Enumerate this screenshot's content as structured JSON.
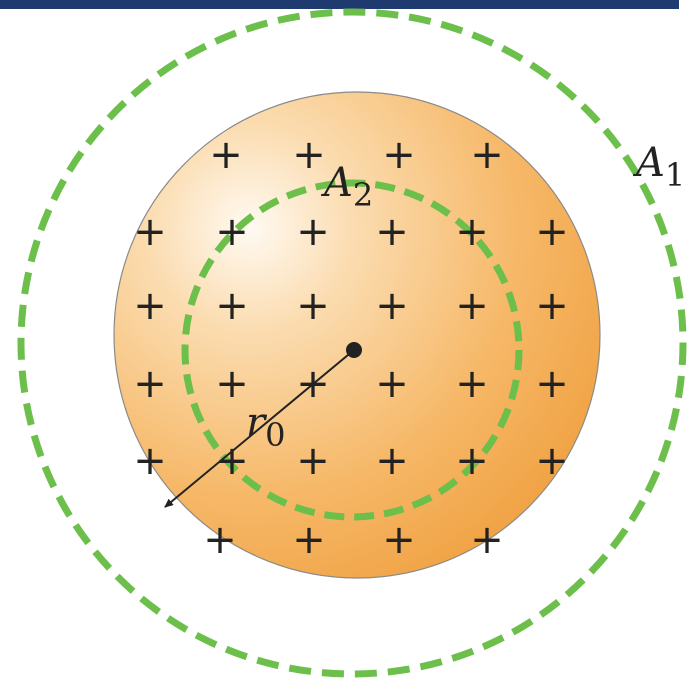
{
  "labels": {
    "outer_surface": "A",
    "outer_surface_sub": "1",
    "inner_surface": "A",
    "inner_surface_sub": "2",
    "radius": "r",
    "radius_sub": "0"
  },
  "charge_symbol": "+",
  "colors": {
    "sphere_light": "#fff3e0",
    "sphere_mid": "#f8c98a",
    "sphere_dark": "#f2a54a",
    "gaussian_surface": "#6cbf4a",
    "ink": "#222222",
    "top_bar": "#1f3a6e"
  }
}
